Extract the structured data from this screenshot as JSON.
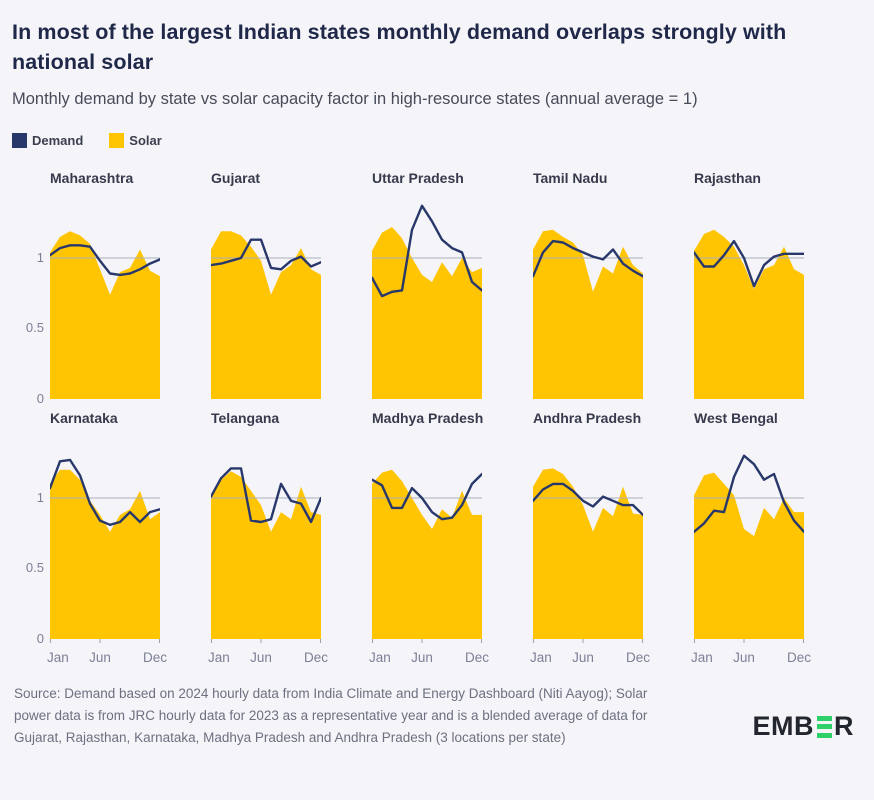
{
  "header": {
    "title": "In most of the largest Indian states monthly demand overlaps strongly with national solar",
    "subtitle": "Monthly demand by state vs solar capacity factor in high-resource states (annual average = 1)"
  },
  "legend": {
    "items": [
      {
        "label": "Demand",
        "color": "#28386B"
      },
      {
        "label": "Solar",
        "color": "#FFC402"
      }
    ]
  },
  "colors": {
    "background": "#F5F4F8",
    "demand_line": "#28386B",
    "solar_area": "#FFC402",
    "gridline": "#ABAFBE",
    "axis_text": "#7C8096",
    "tick": "#9AA0B0",
    "logo_green": "#2ED06A",
    "logo_dark": "#23262E"
  },
  "chart_data": {
    "type": "area",
    "note": "small multiples: yellow area = Solar capacity factor, navy line = Demand; both normalized to annual average = 1",
    "months": [
      "Jan",
      "Feb",
      "Mar",
      "Apr",
      "May",
      "Jun",
      "Jul",
      "Aug",
      "Sep",
      "Oct",
      "Nov",
      "Dec"
    ],
    "x_tick_labels": [
      "Jan",
      "Jun",
      "Dec"
    ],
    "y_tick_labels": [
      "1",
      "0.5",
      "0"
    ],
    "y_ticks": [
      1,
      0.5,
      0
    ],
    "ylim": [
      0,
      1.45
    ],
    "grid_y": 1,
    "legend_position": "top-left",
    "states": [
      {
        "name": "Maharashtra",
        "demand": [
          1.02,
          1.07,
          1.09,
          1.09,
          1.08,
          0.98,
          0.89,
          0.88,
          0.89,
          0.92,
          0.96,
          0.99
        ],
        "solar": [
          1.04,
          1.15,
          1.19,
          1.16,
          1.1,
          0.92,
          0.74,
          0.9,
          0.93,
          1.06,
          0.91,
          0.87
        ]
      },
      {
        "name": "Gujarat",
        "demand": [
          0.95,
          0.96,
          0.98,
          1.0,
          1.13,
          1.13,
          0.93,
          0.92,
          0.98,
          1.01,
          0.94,
          0.97
        ],
        "solar": [
          1.06,
          1.19,
          1.19,
          1.16,
          1.08,
          0.98,
          0.74,
          0.9,
          0.95,
          1.07,
          0.92,
          0.88
        ]
      },
      {
        "name": "Uttar Pradesh",
        "demand": [
          0.86,
          0.73,
          0.76,
          0.77,
          1.2,
          1.37,
          1.26,
          1.13,
          1.07,
          1.04,
          0.83,
          0.77
        ],
        "solar": [
          1.05,
          1.18,
          1.22,
          1.14,
          1.0,
          0.88,
          0.83,
          0.97,
          0.87,
          1.0,
          0.9,
          0.93
        ]
      },
      {
        "name": "Tamil Nadu",
        "demand": [
          0.87,
          1.04,
          1.12,
          1.11,
          1.07,
          1.04,
          1.01,
          0.99,
          1.06,
          0.96,
          0.91,
          0.87
        ],
        "solar": [
          1.06,
          1.19,
          1.2,
          1.15,
          1.11,
          1.02,
          0.76,
          0.94,
          0.89,
          1.08,
          0.95,
          0.89
        ]
      },
      {
        "name": "Rajasthan",
        "demand": [
          1.04,
          0.94,
          0.94,
          1.02,
          1.12,
          1.0,
          0.8,
          0.95,
          1.01,
          1.03,
          1.03,
          1.03
        ],
        "solar": [
          1.05,
          1.17,
          1.2,
          1.15,
          1.08,
          0.95,
          0.78,
          0.92,
          0.95,
          1.08,
          0.92,
          0.88
        ]
      },
      {
        "name": "Karnataka",
        "demand": [
          1.07,
          1.26,
          1.27,
          1.16,
          0.96,
          0.84,
          0.81,
          0.83,
          0.9,
          0.83,
          0.9,
          0.92
        ],
        "solar": [
          1.1,
          1.2,
          1.2,
          1.13,
          0.98,
          0.88,
          0.76,
          0.88,
          0.92,
          1.05,
          0.85,
          0.9
        ]
      },
      {
        "name": "Telangana",
        "demand": [
          1.01,
          1.14,
          1.21,
          1.21,
          0.84,
          0.83,
          0.85,
          1.1,
          0.98,
          0.96,
          0.83,
          1.0
        ],
        "solar": [
          1.0,
          1.13,
          1.19,
          1.15,
          1.05,
          0.95,
          0.76,
          0.9,
          0.85,
          1.08,
          0.9,
          0.88
        ]
      },
      {
        "name": "Madhya Pradesh",
        "demand": [
          1.13,
          1.09,
          0.93,
          0.93,
          1.07,
          1.0,
          0.9,
          0.85,
          0.86,
          0.95,
          1.1,
          1.17
        ],
        "solar": [
          1.1,
          1.18,
          1.2,
          1.12,
          1.0,
          0.88,
          0.78,
          0.92,
          0.86,
          1.05,
          0.88,
          0.88
        ]
      },
      {
        "name": "Andhra Pradesh",
        "demand": [
          0.98,
          1.06,
          1.1,
          1.1,
          1.05,
          0.98,
          0.94,
          1.01,
          0.98,
          0.95,
          0.95,
          0.88
        ],
        "solar": [
          1.08,
          1.2,
          1.21,
          1.17,
          1.08,
          0.95,
          0.76,
          0.93,
          0.87,
          1.08,
          0.89,
          0.88
        ]
      },
      {
        "name": "West Bengal",
        "demand": [
          0.76,
          0.82,
          0.91,
          0.9,
          1.15,
          1.3,
          1.24,
          1.13,
          1.17,
          0.97,
          0.84,
          0.76
        ],
        "solar": [
          1.02,
          1.16,
          1.18,
          1.1,
          1.02,
          0.78,
          0.73,
          0.93,
          0.85,
          1.0,
          0.9,
          0.9
        ]
      }
    ]
  },
  "footer": {
    "source": "Source: Demand based on 2024 hourly data from India Climate and Energy Dashboard (Niti Aayog); Solar power data is from JRC hourly data for 2023 as a representative year and is a blended average of data for Gujarat, Rajasthan, Karnataka, Madhya Pradesh and Andhra Pradesh (3 locations per state)",
    "logo": {
      "pre": "EMB",
      "post": "R"
    }
  }
}
